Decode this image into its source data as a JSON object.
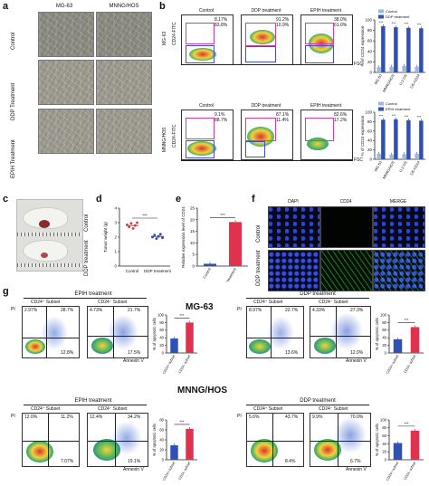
{
  "panel_letters": {
    "a": "a",
    "b": "b",
    "c": "c",
    "d": "d",
    "e": "e",
    "f": "f",
    "g": "g"
  },
  "panel_a": {
    "columns": [
      "MG-63",
      "MNNG/HOS"
    ],
    "rows": [
      "Control",
      "DDP Treatment",
      "EPIH Treatment"
    ]
  },
  "panel_b": {
    "mg63": {
      "row_label": "MG-63",
      "plots": [
        {
          "title": "Control",
          "q1": "8.17%",
          "q2": "83.8%"
        },
        {
          "title": "DDP treatment",
          "q1": "91.2%",
          "q2": "10.9%"
        },
        {
          "title": "EPIH treatment",
          "q1": "38.0%",
          "q2": "61.0%"
        }
      ]
    },
    "hos": {
      "row_label": "MNNG/HOS",
      "plots": [
        {
          "title": "Control",
          "q1": "9.1%",
          "q2": "88.7%"
        },
        {
          "title": "DDP treatment",
          "q1": "87.1%",
          "q2": "11.4%"
        },
        {
          "title": "EPIH treatment",
          "q1": "82.6%",
          "q2": "17.2%"
        }
      ]
    },
    "ylabel": "CD24-FITC",
    "xlabel": "FSC"
  },
  "panel_c": {
    "labels": [
      "Control",
      "DDP treatment"
    ]
  },
  "panel_f": {
    "columns": [
      "DAPI",
      "CD24",
      "MERGE"
    ],
    "rows": [
      "Control",
      "DDP treatment"
    ]
  },
  "panel_g": {
    "cell_lines": [
      "MG-63",
      "MNNG/HOS"
    ],
    "xlabel": "Annexin V",
    "ylabel": "PI",
    "plots": [
      {
        "treatment": "EPIH treatment",
        "subsets": [
          "CD24⁺ Subset",
          "CD24⁻ Subset"
        ],
        "q": [
          "2.97%",
          "28.7%",
          "12.8%",
          "4.73%",
          "21.7%",
          "17.5%"
        ]
      },
      {
        "treatment": "DDP treatment",
        "subsets": [
          "CD24⁺ Subset",
          "CD24⁻ Subset"
        ],
        "q": [
          "8.97%",
          "22.7%",
          "13.6%",
          "4.33%",
          "27.3%",
          "12.0%"
        ]
      },
      {
        "treatment": "EPIH treatment",
        "subsets": [
          "CD24⁺ Subset",
          "CD24⁻ Subset"
        ],
        "q": [
          "12.0%",
          "11.2%",
          "7.07%",
          "12.4%",
          "34.2%",
          "19.1%"
        ]
      },
      {
        "treatment": "DDP treatment",
        "subsets": [
          "CD24⁺ Subset",
          "CD24⁻ Subset"
        ],
        "q": [
          "5.6%",
          "43.7%",
          "8.4%",
          "9.9%",
          "70.0%",
          "6.7%"
        ]
      }
    ]
  },
  "chart_data": [
    {
      "type": "bar",
      "panel": "b-top",
      "categories": [
        "MG-63",
        "MNNG/HOS",
        "U-2 OS",
        "OS-CD24"
      ],
      "series": [
        {
          "name": "Control",
          "values": [
            10,
            11,
            12,
            11
          ]
        },
        {
          "name": "DDP treatment",
          "values": [
            88,
            86,
            85,
            84
          ]
        }
      ],
      "ylabel": "% of CD24 expression",
      "ylim": [
        0,
        100
      ],
      "yticks": [
        "0",
        "20",
        "40",
        "60",
        "80",
        "100"
      ],
      "sig": "***",
      "colors": {
        "Control": "#9bb6e0",
        "DDP treatment": "#2e51b5"
      }
    },
    {
      "type": "bar",
      "panel": "b-bottom",
      "categories": [
        "MG-63",
        "MNNG/HOS",
        "U-2 OS",
        "OS-CD24"
      ],
      "series": [
        {
          "name": "Control",
          "values": [
            12,
            10,
            11,
            12
          ]
        },
        {
          "name": "EPIH treatment",
          "values": [
            84,
            85,
            83,
            82
          ]
        }
      ],
      "ylabel": "% of CD24 expression",
      "ylim": [
        0,
        100
      ],
      "yticks": [
        "0",
        "20",
        "40",
        "60",
        "80",
        "100"
      ],
      "sig": "***",
      "colors": {
        "Control": "#9bb6e0",
        "EPIH treatment": "#2e51b5"
      }
    },
    {
      "type": "scatter",
      "panel": "d",
      "categories": [
        "Control",
        "DDP treatment"
      ],
      "series": [
        {
          "name": "Control",
          "values": [
            2.85,
            2.7,
            2.95,
            2.6,
            2.8,
            3.0
          ],
          "mean": 2.8
        },
        {
          "name": "DDP treatment",
          "values": [
            2.0,
            2.15,
            1.9,
            2.05,
            2.2,
            1.95
          ],
          "mean": 2.05
        }
      ],
      "ylabel": "Tumor weight (g)",
      "ylim": [
        0,
        4
      ],
      "yticks": [
        "0",
        "1",
        "2",
        "3",
        "4"
      ],
      "sig": "***",
      "colors": {
        "Control": "#d23b3b",
        "DDP treatment": "#3545b0"
      }
    },
    {
      "type": "bar",
      "panel": "e",
      "categories": [
        "Control",
        "DDP treatment"
      ],
      "values": [
        1,
        19
      ],
      "ylabel": "Relative expression level of CD24",
      "ylim": [
        0,
        25
      ],
      "yticks": [
        "0",
        "5",
        "10",
        "15",
        "20",
        "25"
      ],
      "sig": "***",
      "colors": {
        "Control": "#2e51b5",
        "DDP treatment": "#e0314f"
      }
    },
    {
      "type": "bar",
      "panel": "g-MG63-EPIH",
      "categories": [
        "CD24+ subset",
        "CD24- subset"
      ],
      "values": [
        38,
        80
      ],
      "ylabel": "% of apoptotic cells",
      "ylim": [
        0,
        100
      ],
      "yticks": [
        "0",
        "20",
        "40",
        "60",
        "80",
        "100"
      ],
      "sig": "***",
      "colors": {
        "CD24+ subset": "#2e51b5",
        "CD24- subset": "#e0314f"
      }
    },
    {
      "type": "bar",
      "panel": "g-MG63-DDP",
      "categories": [
        "CD24+ subset",
        "CD24- subset"
      ],
      "values": [
        36,
        68
      ],
      "ylabel": "% of apoptotic cells",
      "ylim": [
        0,
        100
      ],
      "yticks": [
        "0",
        "20",
        "40",
        "60",
        "80",
        "100"
      ],
      "sig": "***",
      "colors": {
        "CD24+ subset": "#2e51b5",
        "CD24- subset": "#e0314f"
      }
    },
    {
      "type": "bar",
      "panel": "g-HOS-EPIH",
      "categories": [
        "CD24+ subset",
        "CD24- subset"
      ],
      "values": [
        29,
        62
      ],
      "ylabel": "% of apoptotic cells",
      "ylim": [
        0,
        80
      ],
      "yticks": [
        "0",
        "20",
        "40",
        "60",
        "80"
      ],
      "sig": "***",
      "colors": {
        "CD24+ subset": "#2e51b5",
        "CD24- subset": "#e0314f"
      }
    },
    {
      "type": "bar",
      "panel": "g-HOS-DDP",
      "categories": [
        "CD24+ subset",
        "CD24- subset"
      ],
      "values": [
        42,
        73
      ],
      "ylabel": "% of apoptotic cells",
      "ylim": [
        0,
        100
      ],
      "yticks": [
        "0",
        "20",
        "40",
        "60",
        "80",
        "100"
      ],
      "sig": "***",
      "colors": {
        "CD24+ subset": "#2e51b5",
        "CD24- subset": "#e0314f"
      }
    }
  ]
}
